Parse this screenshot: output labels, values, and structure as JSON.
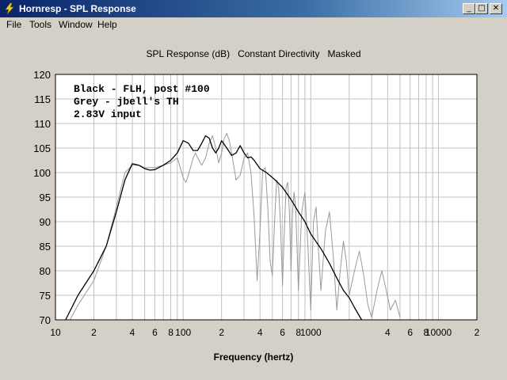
{
  "window": {
    "title": "Hornresp - SPL Response",
    "controls": {
      "minimize": "_",
      "maximize": "□",
      "close": "✕"
    }
  },
  "menu": [
    "File",
    "Tools",
    "Window",
    "Help"
  ],
  "chart_header": {
    "parts": [
      "SPL Response (dB)",
      "Constant Directivity",
      "Masked"
    ]
  },
  "chart_data": {
    "type": "line",
    "xlabel": "Frequency (hertz)",
    "ylabel": "",
    "xscale": "log",
    "xlim": [
      10,
      20000
    ],
    "ylim": [
      70,
      120
    ],
    "y_ticks": [
      70,
      75,
      80,
      85,
      90,
      95,
      100,
      105,
      110,
      115,
      120
    ],
    "x_tick_labels": [
      {
        "value": 10,
        "label": "10"
      },
      {
        "value": 20,
        "label": "2"
      },
      {
        "value": 40,
        "label": "4"
      },
      {
        "value": 60,
        "label": "6"
      },
      {
        "value": 80,
        "label": "8"
      },
      {
        "value": 100,
        "label": "100"
      },
      {
        "value": 200,
        "label": "2"
      },
      {
        "value": 400,
        "label": "4"
      },
      {
        "value": 600,
        "label": "6"
      },
      {
        "value": 800,
        "label": "8"
      },
      {
        "value": 1000,
        "label": "1000"
      },
      {
        "value": 4000,
        "label": "4"
      },
      {
        "value": 6000,
        "label": "6"
      },
      {
        "value": 8000,
        "label": "8"
      },
      {
        "value": 10000,
        "label": "10000"
      },
      {
        "value": 20000,
        "label": "2"
      }
    ],
    "grid": true,
    "annotations": [
      "Black - FLH, post #100",
      "Grey - jbell's TH",
      "2.83V input"
    ],
    "series": [
      {
        "color": "#000000",
        "points": [
          [
            12,
            70
          ],
          [
            15,
            75
          ],
          [
            20,
            80
          ],
          [
            25,
            85
          ],
          [
            30,
            92
          ],
          [
            35,
            98.5
          ],
          [
            40,
            101.8
          ],
          [
            45,
            101.5
          ],
          [
            50,
            100.8
          ],
          [
            55,
            100.5
          ],
          [
            60,
            100.6
          ],
          [
            70,
            101.5
          ],
          [
            80,
            102.5
          ],
          [
            90,
            104
          ],
          [
            100,
            106.5
          ],
          [
            110,
            106
          ],
          [
            120,
            104.5
          ],
          [
            130,
            104.5
          ],
          [
            140,
            106
          ],
          [
            150,
            107.5
          ],
          [
            160,
            107
          ],
          [
            170,
            105
          ],
          [
            180,
            104
          ],
          [
            190,
            105
          ],
          [
            200,
            106.5
          ],
          [
            220,
            105
          ],
          [
            240,
            103.5
          ],
          [
            260,
            104
          ],
          [
            280,
            105.5
          ],
          [
            300,
            104
          ],
          [
            320,
            103
          ],
          [
            340,
            103.2
          ],
          [
            360,
            102.5
          ],
          [
            400,
            100.8
          ],
          [
            450,
            100
          ],
          [
            500,
            99
          ],
          [
            550,
            98
          ],
          [
            600,
            97
          ],
          [
            700,
            94.5
          ],
          [
            800,
            92
          ],
          [
            900,
            90
          ],
          [
            1000,
            87.5
          ],
          [
            1200,
            84.5
          ],
          [
            1400,
            81.5
          ],
          [
            1600,
            78.5
          ],
          [
            1800,
            76
          ],
          [
            2000,
            74.5
          ],
          [
            2200,
            72.5
          ],
          [
            2500,
            70
          ]
        ]
      },
      {
        "color": "#999999",
        "points": [
          [
            13,
            70
          ],
          [
            15,
            73
          ],
          [
            20,
            78
          ],
          [
            25,
            85
          ],
          [
            30,
            93
          ],
          [
            35,
            100
          ],
          [
            40,
            101.5
          ],
          [
            45,
            101.5
          ],
          [
            50,
            101
          ],
          [
            60,
            101
          ],
          [
            70,
            101.5
          ],
          [
            80,
            102
          ],
          [
            90,
            103
          ],
          [
            95,
            101
          ],
          [
            100,
            99
          ],
          [
            105,
            98
          ],
          [
            110,
            99.5
          ],
          [
            120,
            103
          ],
          [
            125,
            104
          ],
          [
            130,
            103
          ],
          [
            140,
            101.5
          ],
          [
            150,
            103
          ],
          [
            160,
            106
          ],
          [
            170,
            107.5
          ],
          [
            180,
            105
          ],
          [
            190,
            102
          ],
          [
            200,
            104
          ],
          [
            210,
            107
          ],
          [
            220,
            108
          ],
          [
            230,
            106.5
          ],
          [
            240,
            104
          ],
          [
            260,
            98.5
          ],
          [
            280,
            99.5
          ],
          [
            300,
            103
          ],
          [
            320,
            104
          ],
          [
            340,
            100
          ],
          [
            360,
            91
          ],
          [
            380,
            78
          ],
          [
            400,
            88
          ],
          [
            420,
            100.5
          ],
          [
            440,
            101
          ],
          [
            460,
            93
          ],
          [
            480,
            82
          ],
          [
            500,
            79
          ],
          [
            520,
            90
          ],
          [
            540,
            98.5
          ],
          [
            560,
            97
          ],
          [
            580,
            89
          ],
          [
            600,
            77
          ],
          [
            620,
            88
          ],
          [
            640,
            97
          ],
          [
            660,
            98
          ],
          [
            680,
            92
          ],
          [
            700,
            80
          ],
          [
            720,
            92
          ],
          [
            740,
            96
          ],
          [
            760,
            93
          ],
          [
            780,
            85
          ],
          [
            800,
            76
          ],
          [
            850,
            92
          ],
          [
            900,
            96
          ],
          [
            950,
            85
          ],
          [
            1000,
            72
          ],
          [
            1050,
            90
          ],
          [
            1100,
            93
          ],
          [
            1150,
            84
          ],
          [
            1200,
            76
          ],
          [
            1300,
            88
          ],
          [
            1400,
            92
          ],
          [
            1500,
            83
          ],
          [
            1600,
            72
          ],
          [
            1700,
            80
          ],
          [
            1800,
            86
          ],
          [
            1900,
            82
          ],
          [
            2000,
            75
          ],
          [
            2200,
            80
          ],
          [
            2400,
            84
          ],
          [
            2600,
            79
          ],
          [
            2800,
            73
          ],
          [
            3000,
            70.5
          ],
          [
            3300,
            76
          ],
          [
            3600,
            80
          ],
          [
            3900,
            76
          ],
          [
            4200,
            72
          ],
          [
            4600,
            74
          ],
          [
            5000,
            70.5
          ]
        ]
      }
    ]
  }
}
